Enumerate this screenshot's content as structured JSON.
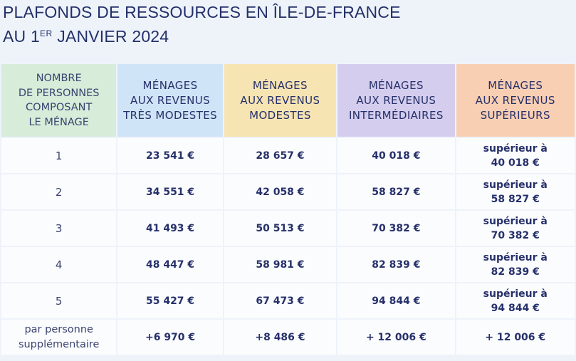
{
  "title": {
    "line1": "PLAFONDS DE RESSOURCES EN ÎLE-DE-FRANCE",
    "line2_prefix": "AU 1",
    "line2_sup": "ER",
    "line2_suffix": " JANVIER 2024"
  },
  "table": {
    "headers": {
      "personnes": [
        "NOMBRE",
        "DE PERSONNES",
        "COMPOSANT",
        "LE MÉNAGE"
      ],
      "tres_modestes": [
        "MÉNAGES",
        "AUX REVENUS",
        "TRÈS MODESTES"
      ],
      "modestes": [
        "MÉNAGES",
        "AUX REVENUS",
        "MODESTES"
      ],
      "intermediaires": [
        "MÉNAGES",
        "AUX REVENUS",
        "INTERMÉDIAIRES"
      ],
      "superieurs": [
        "MÉNAGES",
        "AUX REVENUS",
        "SUPÉRIEURS"
      ]
    },
    "header_colors": {
      "personnes": "#d7ecd9",
      "tres_modestes": "#cfe4f6",
      "modestes": "#f6e4b3",
      "intermediaires": "#d4cdee",
      "superieurs": "#f8cfb3"
    },
    "rows": [
      {
        "personnes": [
          "1"
        ],
        "tres_modestes": "23 541 €",
        "modestes": "28 657 €",
        "intermediaires": "40 018 €",
        "superieurs": [
          "supérieur à",
          "40 018 €"
        ]
      },
      {
        "personnes": [
          "2"
        ],
        "tres_modestes": "34 551 €",
        "modestes": "42 058 €",
        "intermediaires": "58 827 €",
        "superieurs": [
          "supérieur à",
          "58 827 €"
        ]
      },
      {
        "personnes": [
          "3"
        ],
        "tres_modestes": "41 493 €",
        "modestes": "50 513 €",
        "intermediaires": "70 382 €",
        "superieurs": [
          "supérieur à",
          "70 382 €"
        ]
      },
      {
        "personnes": [
          "4"
        ],
        "tres_modestes": "48 447 €",
        "modestes": "58 981 €",
        "intermediaires": "82 839 €",
        "superieurs": [
          "supérieur à",
          "82 839 €"
        ]
      },
      {
        "personnes": [
          "5"
        ],
        "tres_modestes": "55 427 €",
        "modestes": "67 473 €",
        "intermediaires": "94 844 €",
        "superieurs": [
          "supérieur à",
          "94 844 €"
        ]
      },
      {
        "personnes": [
          "par personne",
          "supplémentaire"
        ],
        "tres_modestes": "+6 970 €",
        "modestes": "+8 486 €",
        "intermediaires": "+ 12 006 €",
        "superieurs": [
          "+ 12 006 €"
        ]
      }
    ]
  }
}
